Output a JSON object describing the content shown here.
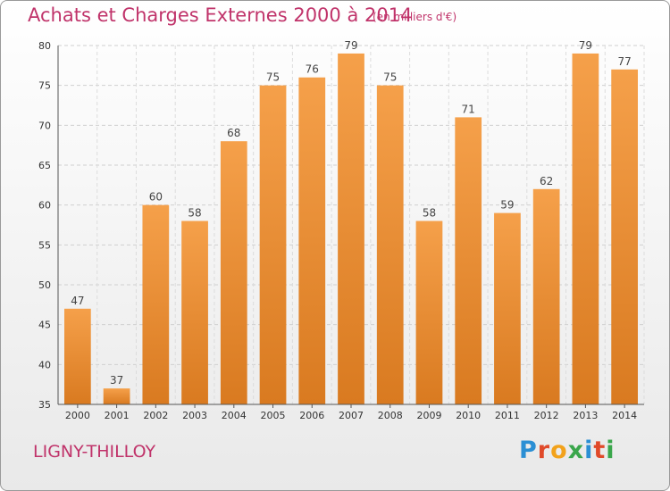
{
  "header": {
    "title": "Achats et Charges Externes 2000 à 2014",
    "subtitle": "(en milliers d'€)"
  },
  "footer": {
    "city": "LIGNY-THILLOY",
    "logo_text": "Proxiti"
  },
  "colors": {
    "title": "#c0336a",
    "bar_top": "#f5a04a",
    "bar_bottom": "#d97a20",
    "logo": [
      "#2b8fd4",
      "#e04a2a",
      "#f2a21b",
      "#3aa64b",
      "#2b8fd4",
      "#e04a2a",
      "#3aa64b"
    ]
  },
  "chart_data": {
    "type": "bar",
    "title": "Achats et Charges Externes 2000 à 2014",
    "subtitle": "(en milliers d'€)",
    "categories": [
      "2000",
      "2001",
      "2002",
      "2003",
      "2004",
      "2005",
      "2006",
      "2007",
      "2008",
      "2009",
      "2010",
      "2011",
      "2012",
      "2013",
      "2014"
    ],
    "values": [
      47,
      37,
      60,
      58,
      68,
      75,
      76,
      79,
      75,
      58,
      71,
      59,
      62,
      79,
      77
    ],
    "ylim": [
      35,
      80
    ],
    "yticks": [
      35,
      40,
      45,
      50,
      55,
      60,
      65,
      70,
      75,
      80
    ],
    "grid": true,
    "data_labels": true
  }
}
